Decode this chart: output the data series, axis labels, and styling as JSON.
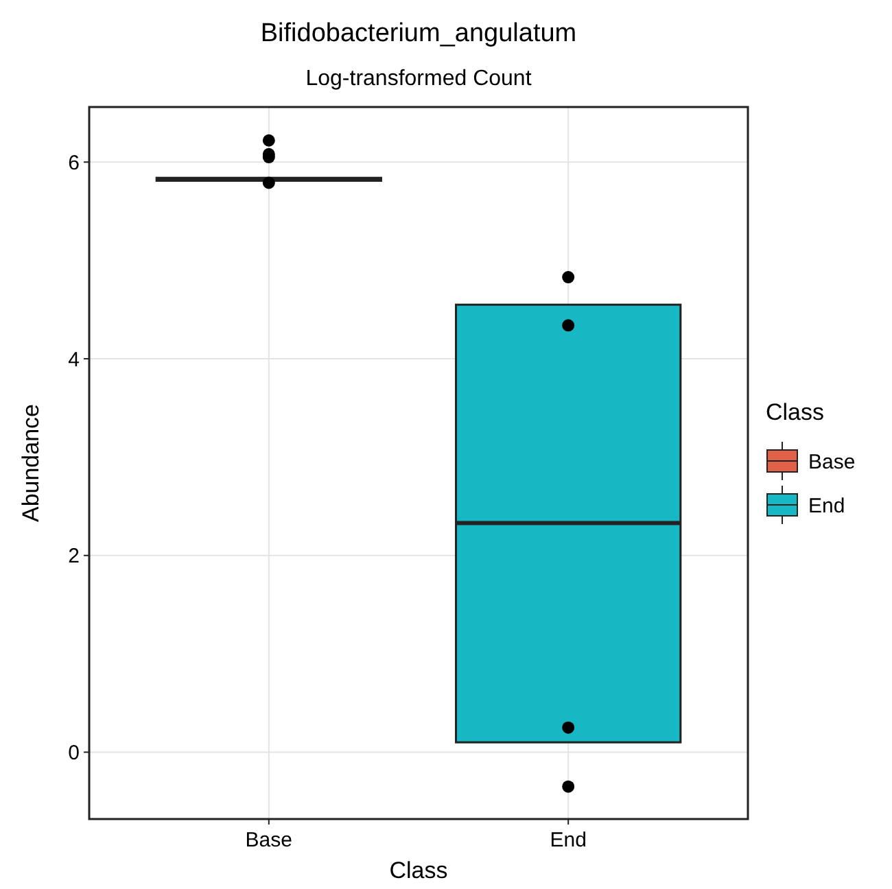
{
  "chart_data": {
    "type": "box",
    "title": "Bifidobacterium_angulatum",
    "subtitle": "Log-transformed Count",
    "xlabel": "Class",
    "ylabel": "Abundance",
    "legend_title": "Class",
    "categories": [
      "Base",
      "End"
    ],
    "series": [
      {
        "name": "Base",
        "color": "#e0604a",
        "boxes": [
          {
            "low": 5.81,
            "q1": 5.81,
            "median": 5.82,
            "q3": 5.84,
            "high": 5.84
          },
          null
        ]
      },
      {
        "name": "End",
        "color": "#17b8c4",
        "boxes": [
          null,
          {
            "low": 0.1,
            "q1": 0.1,
            "median": 2.33,
            "q3": 4.55,
            "high": 4.55
          }
        ]
      },
      {
        "type": "scatter",
        "color": "#000000",
        "x": [
          "Base",
          "Base",
          "Base",
          "Base",
          "End",
          "End",
          "End",
          "End"
        ],
        "values": [
          6.08,
          6.22,
          6.05,
          5.79,
          4.83,
          4.34,
          0.25,
          -0.35
        ]
      }
    ],
    "ylim": [
      -0.68,
      6.56
    ],
    "yticks": [
      0,
      2,
      4,
      6
    ],
    "grid": true,
    "legend": "right"
  }
}
